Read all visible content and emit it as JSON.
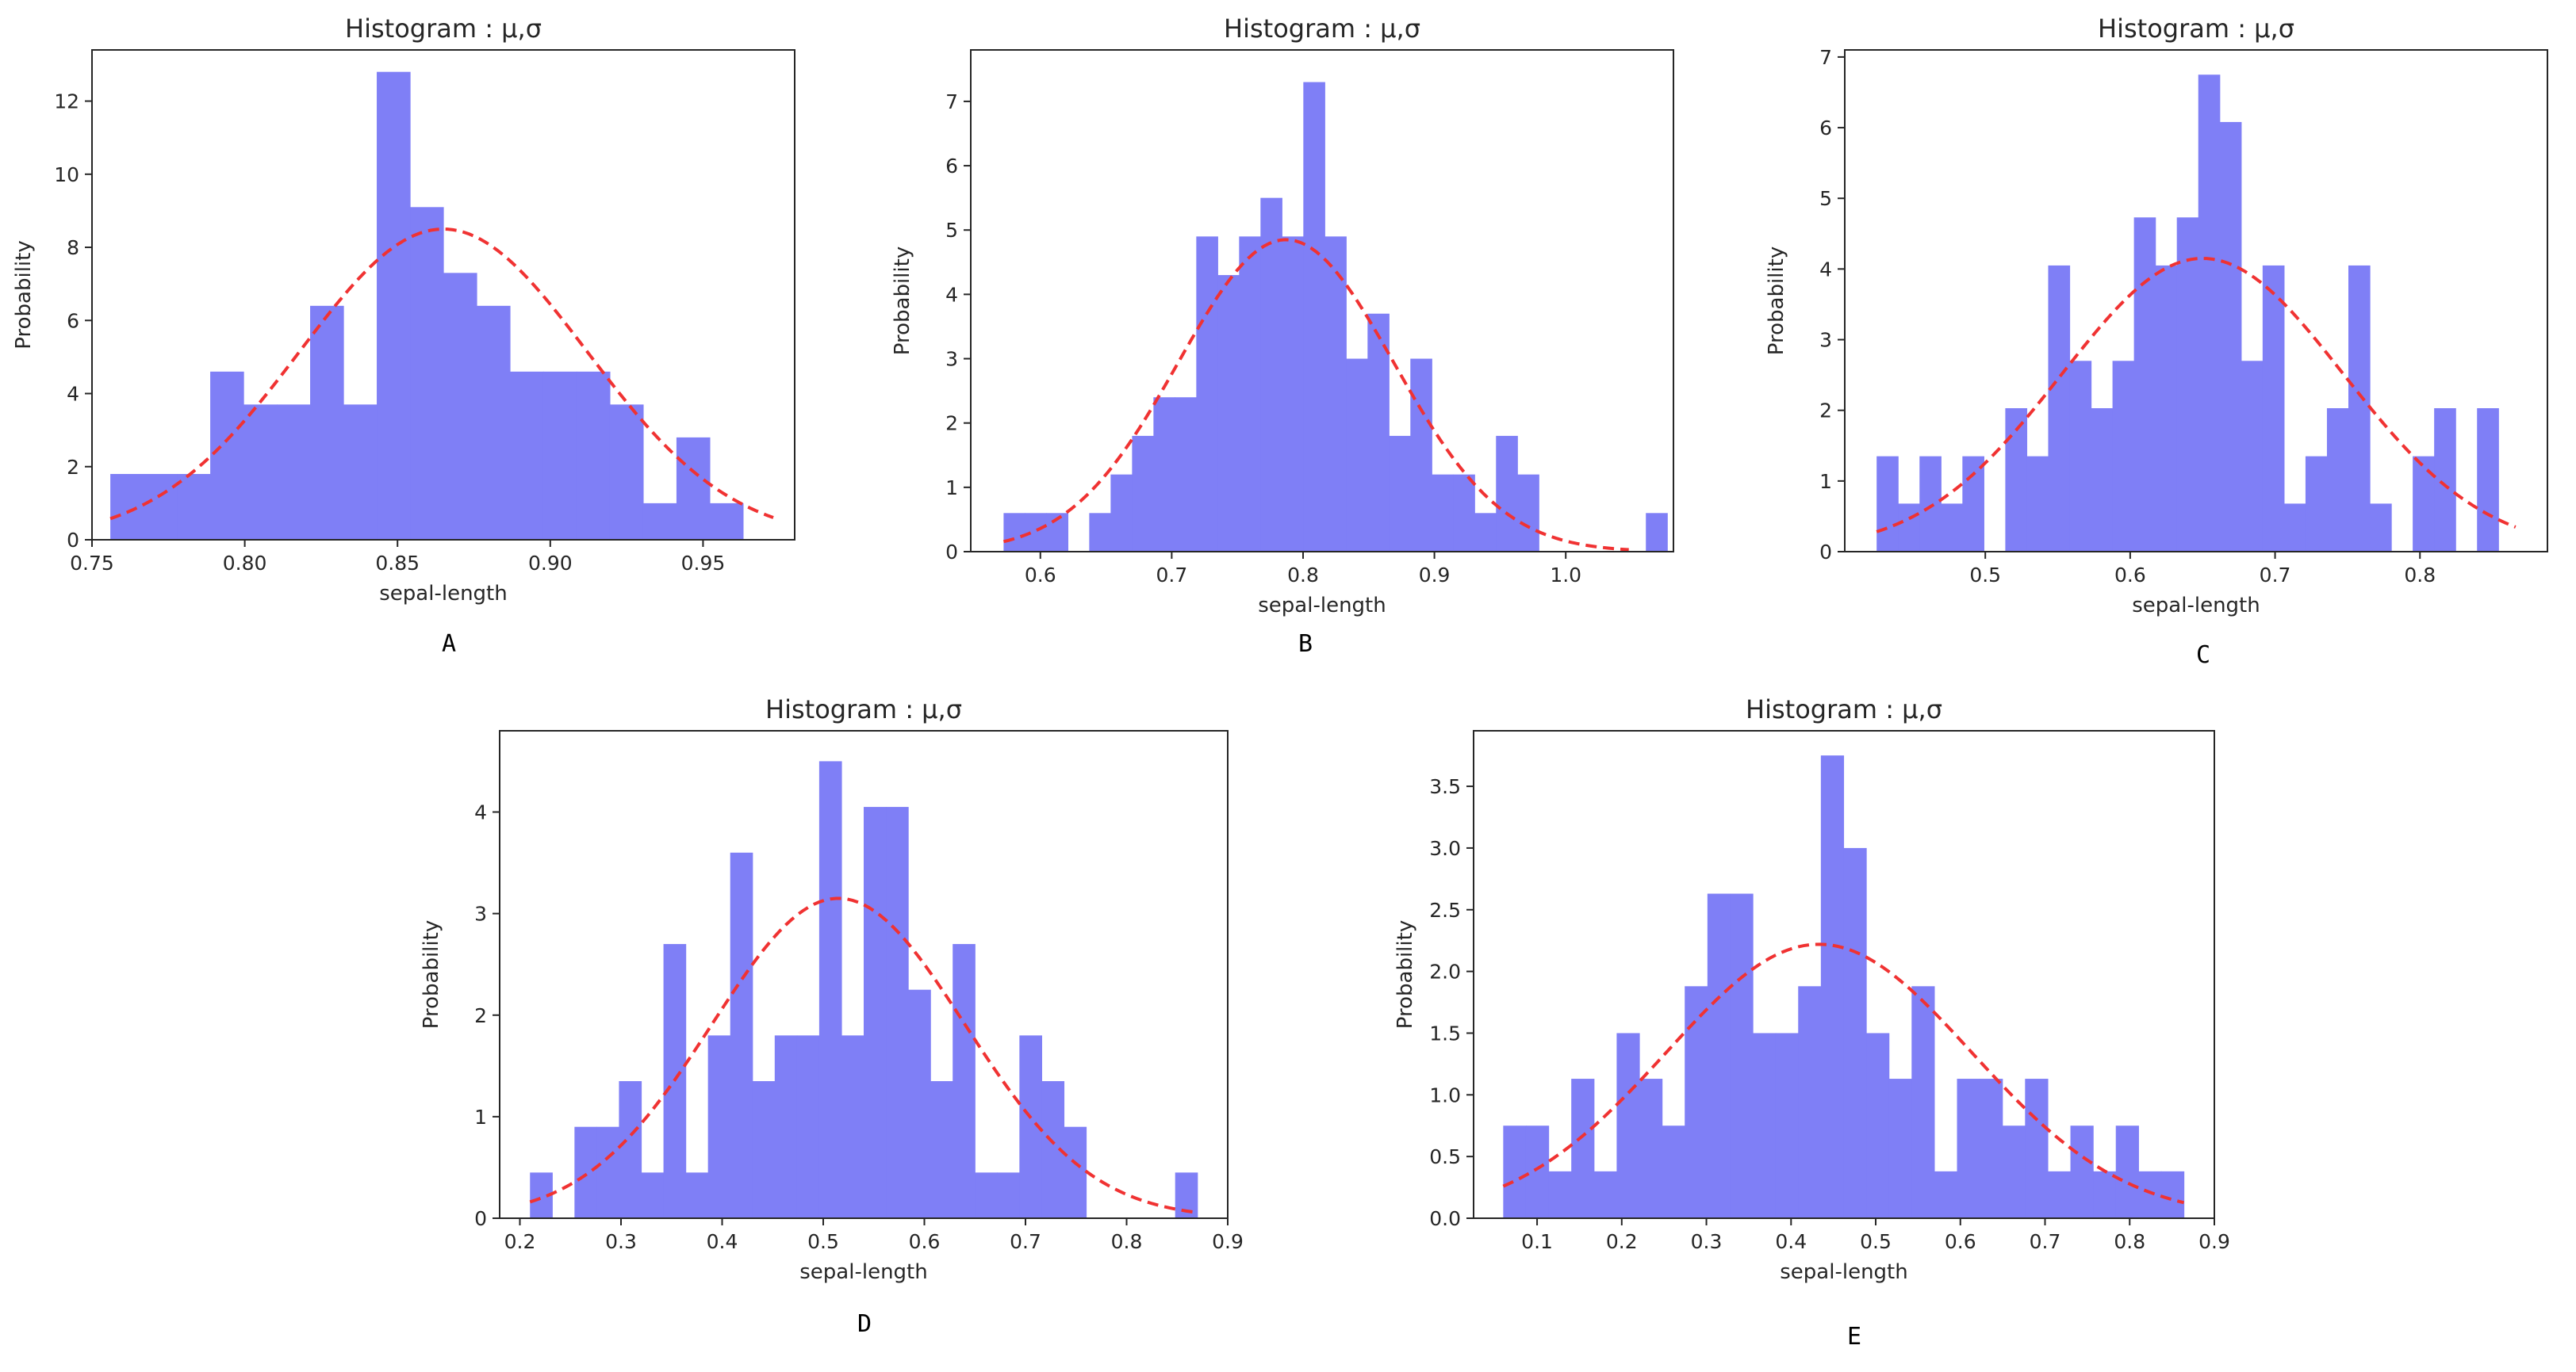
{
  "colors": {
    "bar": "#7f7ff6",
    "curve": "#f03232",
    "axis": "#262626"
  },
  "chart_data": [
    {
      "type": "bar",
      "panel_letter": "A",
      "title": "Histogram : μ,σ",
      "xlabel": "sepal-length",
      "ylabel": "Probability",
      "xlim": [
        0.75,
        0.98
      ],
      "ylim": [
        0,
        13.4
      ],
      "xticks": [
        "0.75",
        "0.80",
        "0.85",
        "0.90",
        "0.95"
      ],
      "yticks": [
        "0",
        "2",
        "4",
        "6",
        "8",
        "10",
        "12"
      ],
      "bin_start": 0.756,
      "bin_width": 0.0109,
      "values": [
        1.8,
        1.8,
        1.8,
        4.6,
        3.7,
        3.7,
        6.4,
        3.7,
        12.8,
        9.1,
        7.3,
        6.4,
        4.6,
        4.6,
        4.6,
        3.7,
        1.0,
        2.8,
        1.0
      ],
      "fit": {
        "mu": 0.865,
        "sigma": 0.047,
        "peak": 8.5
      },
      "fit_range": [
        0.756,
        0.973
      ]
    },
    {
      "type": "bar",
      "panel_letter": "B",
      "title": "Histogram : μ,σ",
      "xlabel": "sepal-length",
      "ylabel": "Probability",
      "xlim": [
        0.547,
        1.082
      ],
      "ylim": [
        0,
        7.8
      ],
      "xticks": [
        "0.6",
        "0.7",
        "0.8",
        "0.9",
        "1.0"
      ],
      "yticks": [
        "0",
        "1",
        "2",
        "3",
        "4",
        "5",
        "6",
        "7"
      ],
      "bin_start": 0.572,
      "bin_width": 0.0163,
      "values": [
        0.6,
        0.6,
        0.6,
        0.0,
        0.6,
        1.2,
        1.8,
        2.4,
        2.4,
        4.9,
        4.3,
        4.9,
        5.5,
        4.9,
        7.3,
        4.9,
        3.0,
        3.7,
        1.8,
        3.0,
        1.2,
        1.2,
        0.6,
        1.8,
        1.2,
        0.0,
        0.0,
        0.0,
        0.0,
        0.0,
        0.6
      ],
      "fit": {
        "mu": 0.787,
        "sigma": 0.082,
        "peak": 4.85
      },
      "fit_range": [
        0.572,
        1.048
      ]
    },
    {
      "type": "bar",
      "panel_letter": "C",
      "title": "Histogram : μ,σ",
      "xlabel": "sepal-length",
      "ylabel": "Probability",
      "xlim": [
        0.403,
        0.888
      ],
      "ylim": [
        0,
        7.1
      ],
      "xticks": [
        "0.5",
        "0.6",
        "0.7",
        "0.8"
      ],
      "yticks": [
        "0",
        "1",
        "2",
        "3",
        "4",
        "5",
        "6",
        "7"
      ],
      "bin_start": 0.425,
      "bin_width": 0.0148,
      "values": [
        1.35,
        0.68,
        1.35,
        0.68,
        1.35,
        0.0,
        2.03,
        1.35,
        4.05,
        2.7,
        2.03,
        2.7,
        4.73,
        4.05,
        4.73,
        6.75,
        6.08,
        2.7,
        4.05,
        0.68,
        1.35,
        2.03,
        4.05,
        0.68,
        0.0,
        1.35,
        2.03,
        0.0,
        2.03
      ],
      "fit": {
        "mu": 0.65,
        "sigma": 0.097,
        "peak": 4.15
      },
      "fit_range": [
        0.425,
        0.866
      ]
    },
    {
      "type": "bar",
      "panel_letter": "D",
      "title": "Histogram : μ,σ",
      "xlabel": "sepal-length",
      "ylabel": "Probability",
      "xlim": [
        0.18,
        0.9
      ],
      "ylim": [
        0,
        4.8
      ],
      "xticks": [
        "0.2",
        "0.3",
        "0.4",
        "0.5",
        "0.6",
        "0.7",
        "0.8",
        "0.9"
      ],
      "yticks": [
        "0",
        "1",
        "2",
        "3",
        "4"
      ],
      "bin_start": 0.21,
      "bin_width": 0.022,
      "values": [
        0.45,
        0.0,
        0.9,
        0.9,
        1.35,
        0.45,
        2.7,
        0.45,
        1.8,
        3.6,
        1.35,
        1.8,
        1.8,
        4.5,
        1.8,
        4.05,
        4.05,
        2.25,
        1.35,
        2.7,
        0.45,
        0.45,
        1.8,
        1.35,
        0.9,
        0.0,
        0.0,
        0.0,
        0.0,
        0.45
      ],
      "fit": {
        "mu": 0.515,
        "sigma": 0.125,
        "peak": 3.15
      },
      "fit_range": [
        0.21,
        0.87
      ]
    },
    {
      "type": "bar",
      "panel_letter": "E",
      "title": "Histogram : μ,σ",
      "xlabel": "sepal-length",
      "ylabel": "Probability",
      "xlim": [
        0.025,
        0.9
      ],
      "ylim": [
        0,
        3.95
      ],
      "xticks": [
        "0.1",
        "0.2",
        "0.3",
        "0.4",
        "0.5",
        "0.6",
        "0.7",
        "0.8",
        "0.9"
      ],
      "yticks": [
        "0.0",
        "0.5",
        "1.0",
        "1.5",
        "2.0",
        "2.5",
        "3.0",
        "3.5"
      ],
      "bin_start": 0.06,
      "bin_width": 0.0268,
      "values": [
        0.75,
        0.75,
        0.38,
        1.13,
        0.38,
        1.5,
        1.13,
        0.75,
        1.88,
        2.63,
        2.63,
        1.5,
        1.5,
        1.88,
        3.75,
        3.0,
        1.5,
        1.13,
        1.88,
        0.38,
        1.13,
        1.13,
        0.75,
        1.13,
        0.38,
        0.75,
        0.38,
        0.75,
        0.38,
        0.38
      ],
      "fit": {
        "mu": 0.433,
        "sigma": 0.18,
        "peak": 2.22
      },
      "fit_range": [
        0.06,
        0.864
      ]
    }
  ]
}
